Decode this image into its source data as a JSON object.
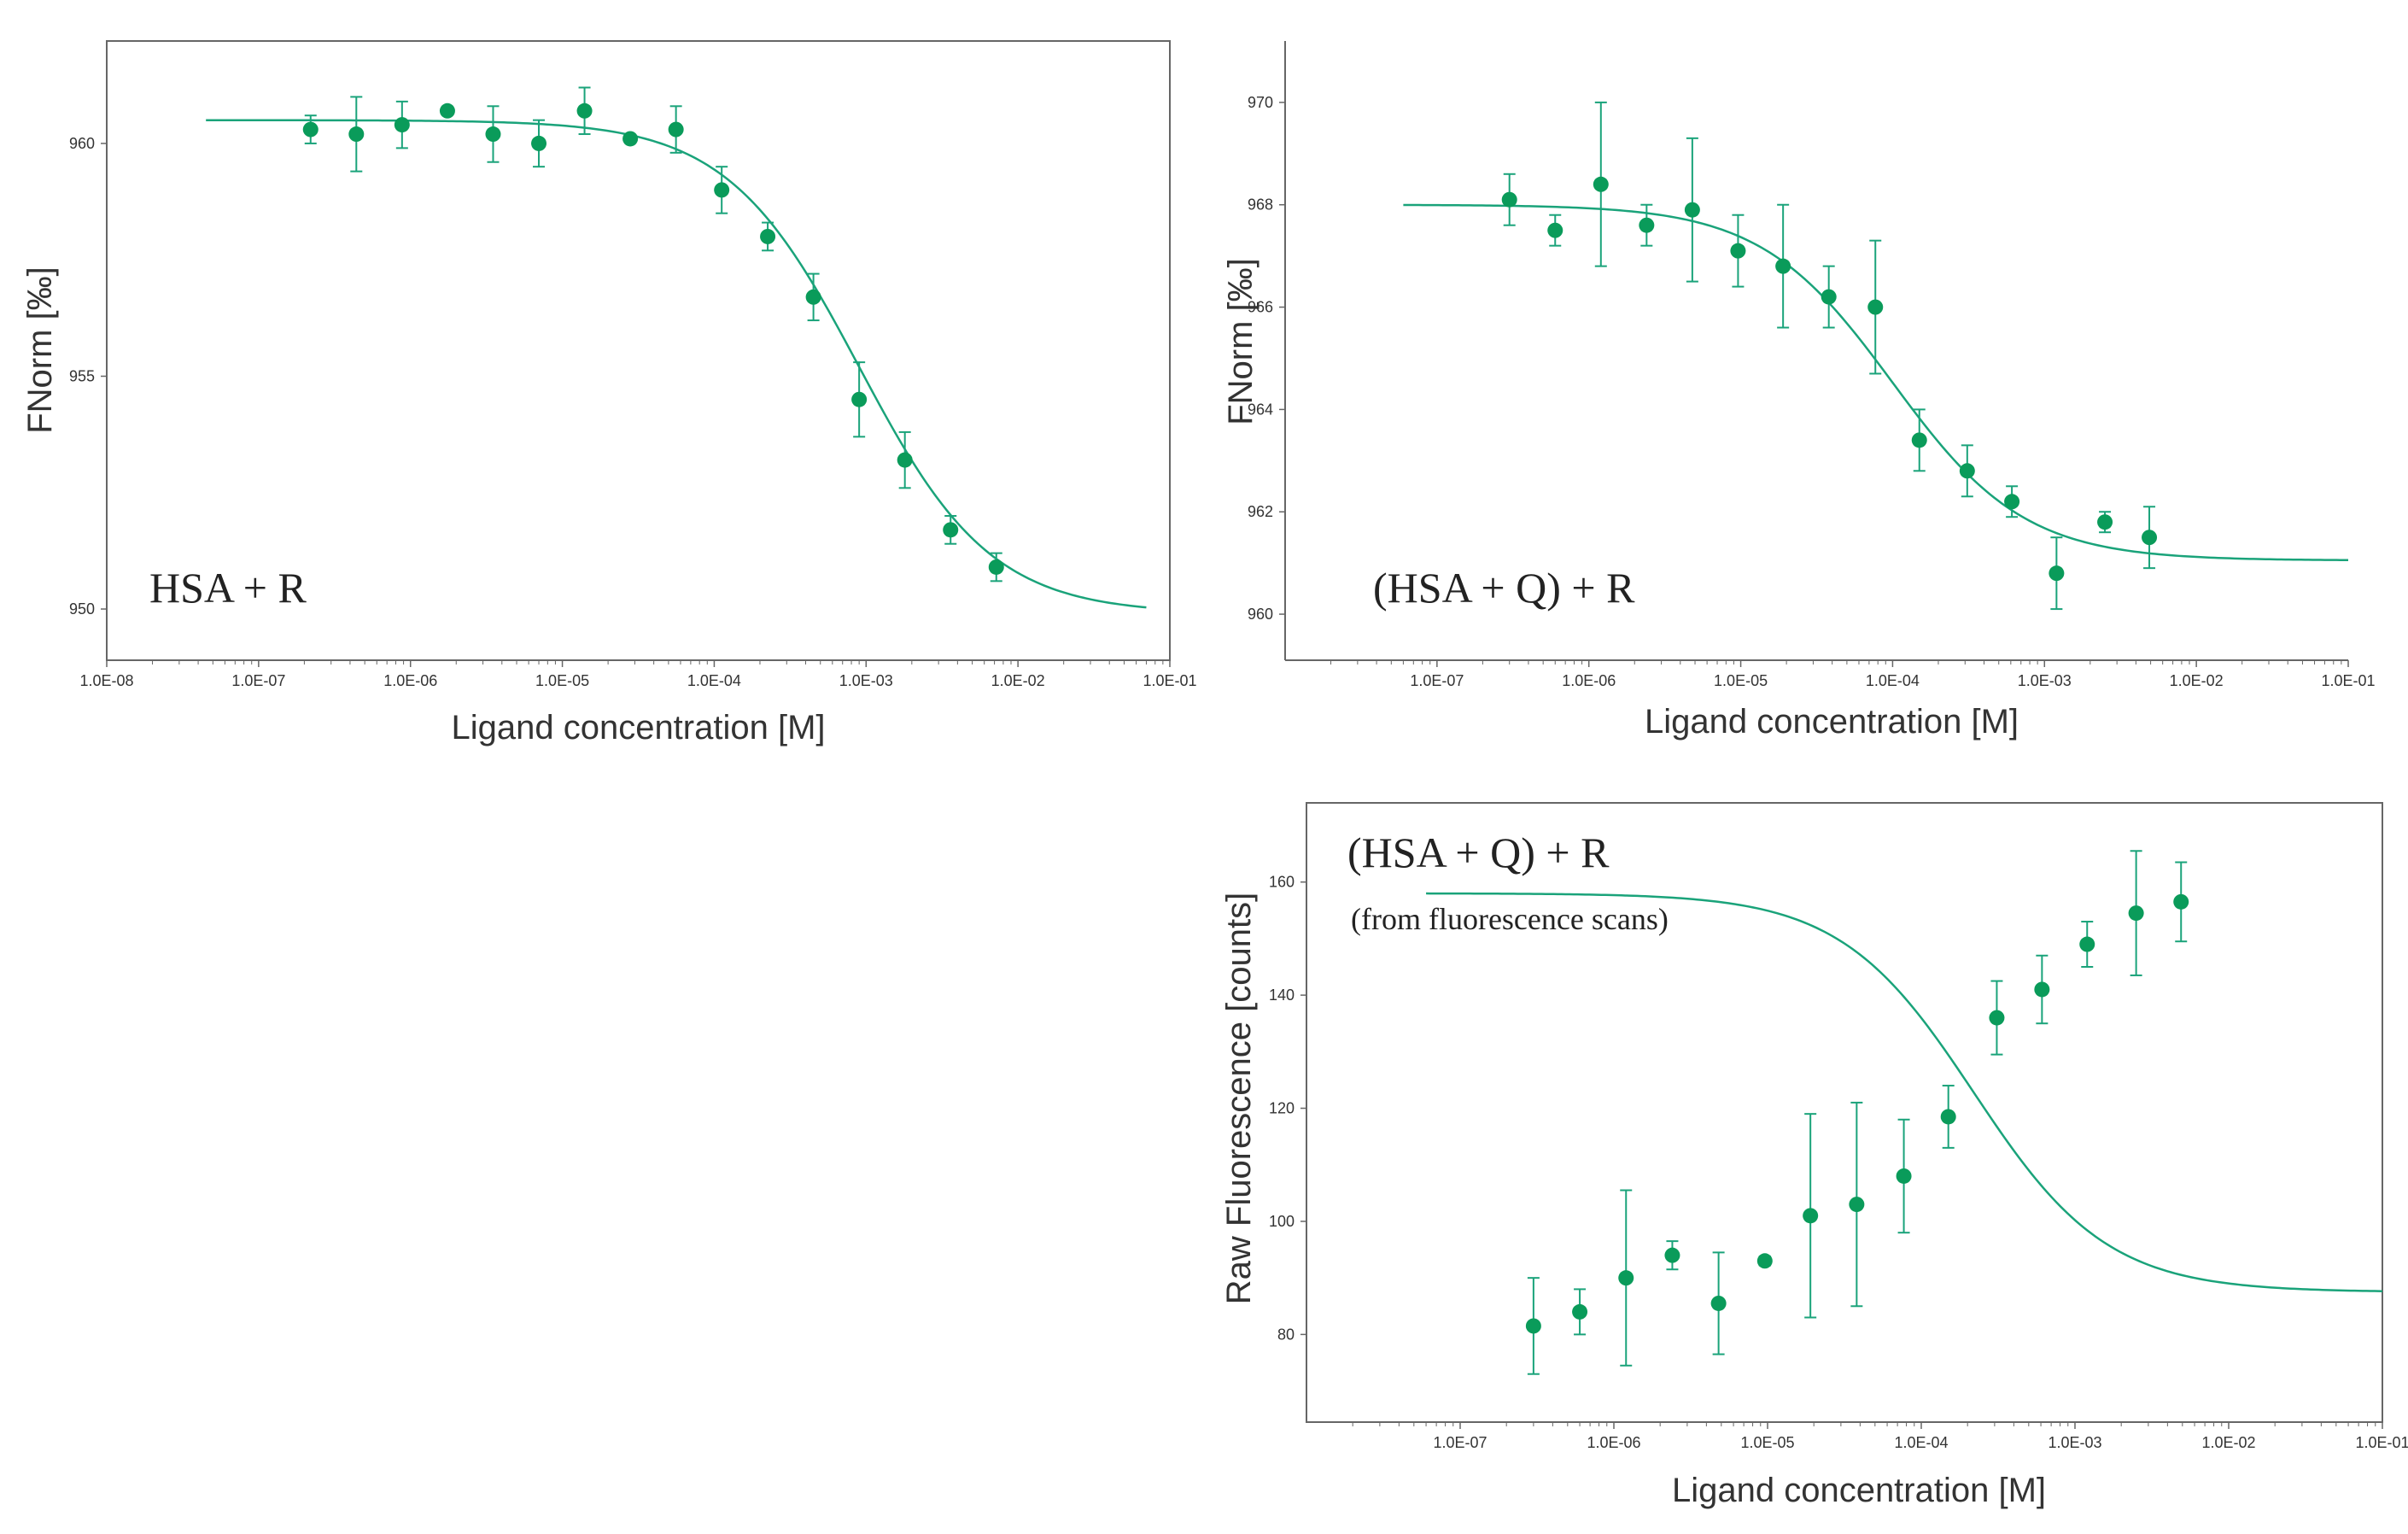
{
  "colors": {
    "series": "#0a9b5a",
    "fit": "#1aa37a",
    "frame": "#666666",
    "text": "#333333"
  },
  "chart_data": [
    {
      "type": "scatter",
      "panel": "top-left",
      "title": "HSA + R",
      "subtitle": "",
      "xlabel": "Ligand concentration [M]",
      "ylabel": "FNorm [‰]",
      "xscale": "log",
      "xlim": [
        1e-08,
        0.1
      ],
      "ylim": [
        948.9,
        962.2
      ],
      "x_ticks": [
        1e-08,
        1e-07,
        1e-06,
        1e-05,
        0.0001,
        0.001,
        0.01,
        0.1
      ],
      "x_tick_labels": [
        "1.0E-08",
        "1.0E-07",
        "1.0E-06",
        "1.0E-05",
        "1.0E-04",
        "1.0E-03",
        "1.0E-02",
        "1.0E-01"
      ],
      "y_ticks": [
        950,
        955,
        960
      ],
      "y_tick_labels": [
        "950",
        "955",
        "960"
      ],
      "points": [
        {
          "x": 2.2e-07,
          "y": 960.3,
          "err": 0.3
        },
        {
          "x": 4.4e-07,
          "y": 960.2,
          "err": 0.8
        },
        {
          "x": 8.8e-07,
          "y": 960.4,
          "err": 0.5
        },
        {
          "x": 1.75e-06,
          "y": 960.7,
          "err": 0.0
        },
        {
          "x": 3.5e-06,
          "y": 960.2,
          "err": 0.6
        },
        {
          "x": 7e-06,
          "y": 960.0,
          "err": 0.5
        },
        {
          "x": 1.4e-05,
          "y": 960.7,
          "err": 0.5
        },
        {
          "x": 2.8e-05,
          "y": 960.1,
          "err": 0.0
        },
        {
          "x": 5.6e-05,
          "y": 960.3,
          "err": 0.5
        },
        {
          "x": 0.000112,
          "y": 959.0,
          "err": 0.5
        },
        {
          "x": 0.000225,
          "y": 958.0,
          "err": 0.3
        },
        {
          "x": 0.00045,
          "y": 956.7,
          "err": 0.5
        },
        {
          "x": 0.0009,
          "y": 954.5,
          "err": 0.8
        },
        {
          "x": 0.0018,
          "y": 953.2,
          "err": 0.6
        },
        {
          "x": 0.0036,
          "y": 951.7,
          "err": 0.3
        },
        {
          "x": 0.0072,
          "y": 950.9,
          "err": 0.3
        }
      ],
      "fit": {
        "model": "sigmoid-log",
        "top": 960.5,
        "bottom": 949.9,
        "ec50": 0.0009,
        "hill": 1.0,
        "x_range": [
          4.5e-08,
          0.07
        ]
      }
    },
    {
      "type": "scatter",
      "panel": "top-right",
      "title": "(HSA + Q) + R",
      "subtitle": "",
      "xlabel": "Ligand concentration [M]",
      "ylabel": "FNorm [‰]",
      "xscale": "log",
      "xlim": [
        1e-08,
        0.1
      ],
      "ylim": [
        959.1,
        971.2
      ],
      "x_ticks": [
        1e-07,
        1e-06,
        1e-05,
        0.0001,
        0.001,
        0.01,
        0.1
      ],
      "x_tick_labels": [
        "1.0E-07",
        "1.0E-06",
        "1.0E-05",
        "1.0E-04",
        "1.0E-03",
        "1.0E-02",
        "1.0E-01"
      ],
      "y_ticks": [
        960,
        962,
        964,
        966,
        968,
        970
      ],
      "y_tick_labels": [
        "960",
        "962",
        "964",
        "966",
        "968",
        "970"
      ],
      "points": [
        {
          "x": 3e-07,
          "y": 968.1,
          "err": 0.5
        },
        {
          "x": 6e-07,
          "y": 967.5,
          "err": 0.3
        },
        {
          "x": 1.2e-06,
          "y": 968.4,
          "err": 1.6
        },
        {
          "x": 2.4e-06,
          "y": 967.6,
          "err": 0.4
        },
        {
          "x": 4.8e-06,
          "y": 967.9,
          "err": 1.4
        },
        {
          "x": 9.6e-06,
          "y": 967.1,
          "err": 0.7
        },
        {
          "x": 1.9e-05,
          "y": 966.8,
          "err": 1.2
        },
        {
          "x": 3.8e-05,
          "y": 966.2,
          "err": 0.6
        },
        {
          "x": 7.7e-05,
          "y": 966.0,
          "err": 1.3
        },
        {
          "x": 0.00015,
          "y": 963.4,
          "err": 0.6
        },
        {
          "x": 0.00031,
          "y": 962.8,
          "err": 0.5
        },
        {
          "x": 0.00061,
          "y": 962.2,
          "err": 0.3
        },
        {
          "x": 0.0012,
          "y": 960.8,
          "err": 0.7
        },
        {
          "x": 0.0025,
          "y": 961.8,
          "err": 0.2
        },
        {
          "x": 0.0049,
          "y": 961.5,
          "err": 0.6
        }
      ],
      "fit": {
        "model": "sigmoid-log",
        "top": 968.0,
        "bottom": 961.05,
        "ec50": 0.0001,
        "hill": 1.0,
        "x_range": [
          6e-08,
          0.1
        ]
      }
    },
    {
      "type": "scatter",
      "panel": "bottom-right",
      "title": "(HSA + Q) + R",
      "subtitle": "(from fluorescence scans)",
      "xlabel": "Ligand concentration [M]",
      "ylabel": "Raw Fluorescence [counts]",
      "xscale": "log",
      "xlim": [
        1e-08,
        0.1
      ],
      "ylim": [
        64.5,
        174
      ],
      "x_ticks": [
        1e-07,
        1e-06,
        1e-05,
        0.0001,
        0.001,
        0.01,
        0.1
      ],
      "x_tick_labels": [
        "1.0E-07",
        "1.0E-06",
        "1.0E-05",
        "1.0E-04",
        "1.0E-03",
        "1.0E-02",
        "1.0E-01"
      ],
      "y_ticks": [
        80,
        100,
        120,
        140,
        160
      ],
      "y_tick_labels": [
        "80",
        "100",
        "120",
        "140",
        "160"
      ],
      "points": [
        {
          "x": 3e-07,
          "y": 81.5,
          "err": 8.5
        },
        {
          "x": 6e-07,
          "y": 84.0,
          "err": 4.0
        },
        {
          "x": 1.2e-06,
          "y": 90.0,
          "err": 15.5
        },
        {
          "x": 2.4e-06,
          "y": 94.0,
          "err": 2.5
        },
        {
          "x": 4.8e-06,
          "y": 85.5,
          "err": 9.0
        },
        {
          "x": 9.6e-06,
          "y": 93.0,
          "err": 0.8
        },
        {
          "x": 1.9e-05,
          "y": 101.0,
          "err": 18.0
        },
        {
          "x": 3.8e-05,
          "y": 103.0,
          "err": 18.0
        },
        {
          "x": 7.7e-05,
          "y": 108.0,
          "err": 10.0
        },
        {
          "x": 0.00015,
          "y": 118.5,
          "err": 5.5
        },
        {
          "x": 0.00031,
          "y": 136.0,
          "err": 6.5
        },
        {
          "x": 0.00061,
          "y": 141.0,
          "err": 6.0
        },
        {
          "x": 0.0012,
          "y": 149.0,
          "err": 4.0
        },
        {
          "x": 0.0025,
          "y": 154.5,
          "err": 11.0
        },
        {
          "x": 0.0049,
          "y": 156.5,
          "err": 7.0
        }
      ],
      "fit": {
        "model": "sigmoid-log",
        "top": 158.0,
        "bottom": 87.5,
        "ec50": 0.00022,
        "hill": 1.0,
        "x_range": [
          6e-08,
          0.1
        ]
      }
    }
  ]
}
